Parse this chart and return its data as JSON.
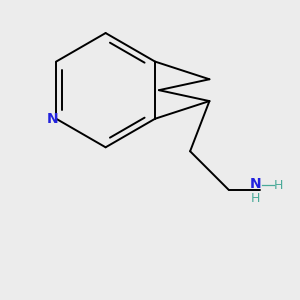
{
  "bg_color": "#ececec",
  "bond_color": "#000000",
  "N_color": "#2222dd",
  "NH2_N_color": "#2222dd",
  "NH2_H_color": "#4aaa99",
  "bond_width": 1.4,
  "font_size_N": 10,
  "font_size_H": 9,
  "xlim": [
    0.05,
    0.78
  ],
  "ylim": [
    0.08,
    0.85
  ]
}
